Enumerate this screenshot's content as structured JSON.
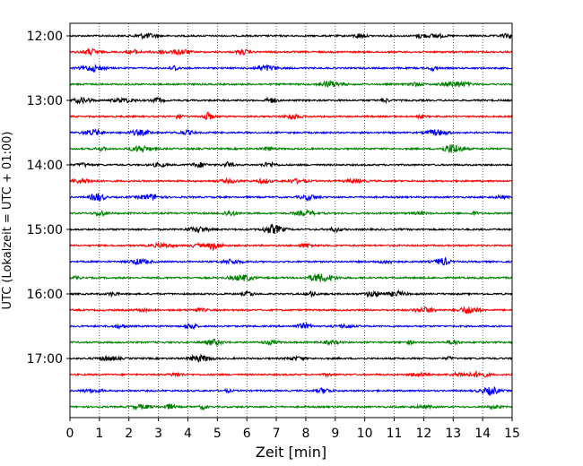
{
  "chart_data": {
    "type": "line",
    "title": "",
    "xlabel": "Zeit  [min]",
    "ylabel": "UTC (Lokalzeit = UTC + 01:00)",
    "xlim": [
      0,
      15
    ],
    "x_ticks": [
      0,
      1,
      2,
      3,
      4,
      5,
      6,
      7,
      8,
      9,
      10,
      11,
      12,
      13,
      14,
      15
    ],
    "x_tick_labels": [
      "0",
      "1",
      "2",
      "3",
      "4",
      "5",
      "6",
      "7",
      "8",
      "9",
      "10",
      "11",
      "12",
      "13",
      "14",
      "15"
    ],
    "y_ticks": [
      "12:00",
      "13:00",
      "14:00",
      "15:00",
      "16:00",
      "17:00"
    ],
    "grid": "vertical dotted",
    "trace_interval_minutes": 15,
    "trace_color_cycle": [
      "#000000",
      "#ff0000",
      "#0000ff",
      "#008000"
    ],
    "traces": [
      {
        "start": "12:00",
        "color": "#000000"
      },
      {
        "start": "12:15",
        "color": "#ff0000"
      },
      {
        "start": "12:30",
        "color": "#0000ff"
      },
      {
        "start": "12:45",
        "color": "#008000"
      },
      {
        "start": "13:00",
        "color": "#000000"
      },
      {
        "start": "13:15",
        "color": "#ff0000"
      },
      {
        "start": "13:30",
        "color": "#0000ff"
      },
      {
        "start": "13:45",
        "color": "#008000"
      },
      {
        "start": "14:00",
        "color": "#000000"
      },
      {
        "start": "14:15",
        "color": "#ff0000"
      },
      {
        "start": "14:30",
        "color": "#0000ff"
      },
      {
        "start": "14:45",
        "color": "#008000"
      },
      {
        "start": "15:00",
        "color": "#000000"
      },
      {
        "start": "15:15",
        "color": "#ff0000"
      },
      {
        "start": "15:30",
        "color": "#0000ff"
      },
      {
        "start": "15:45",
        "color": "#008000"
      },
      {
        "start": "16:00",
        "color": "#000000"
      },
      {
        "start": "16:15",
        "color": "#ff0000"
      },
      {
        "start": "16:30",
        "color": "#0000ff"
      },
      {
        "start": "16:45",
        "color": "#008000"
      },
      {
        "start": "17:00",
        "color": "#000000"
      },
      {
        "start": "17:15",
        "color": "#ff0000"
      },
      {
        "start": "17:30",
        "color": "#0000ff"
      },
      {
        "start": "17:45",
        "color": "#008000"
      }
    ]
  }
}
